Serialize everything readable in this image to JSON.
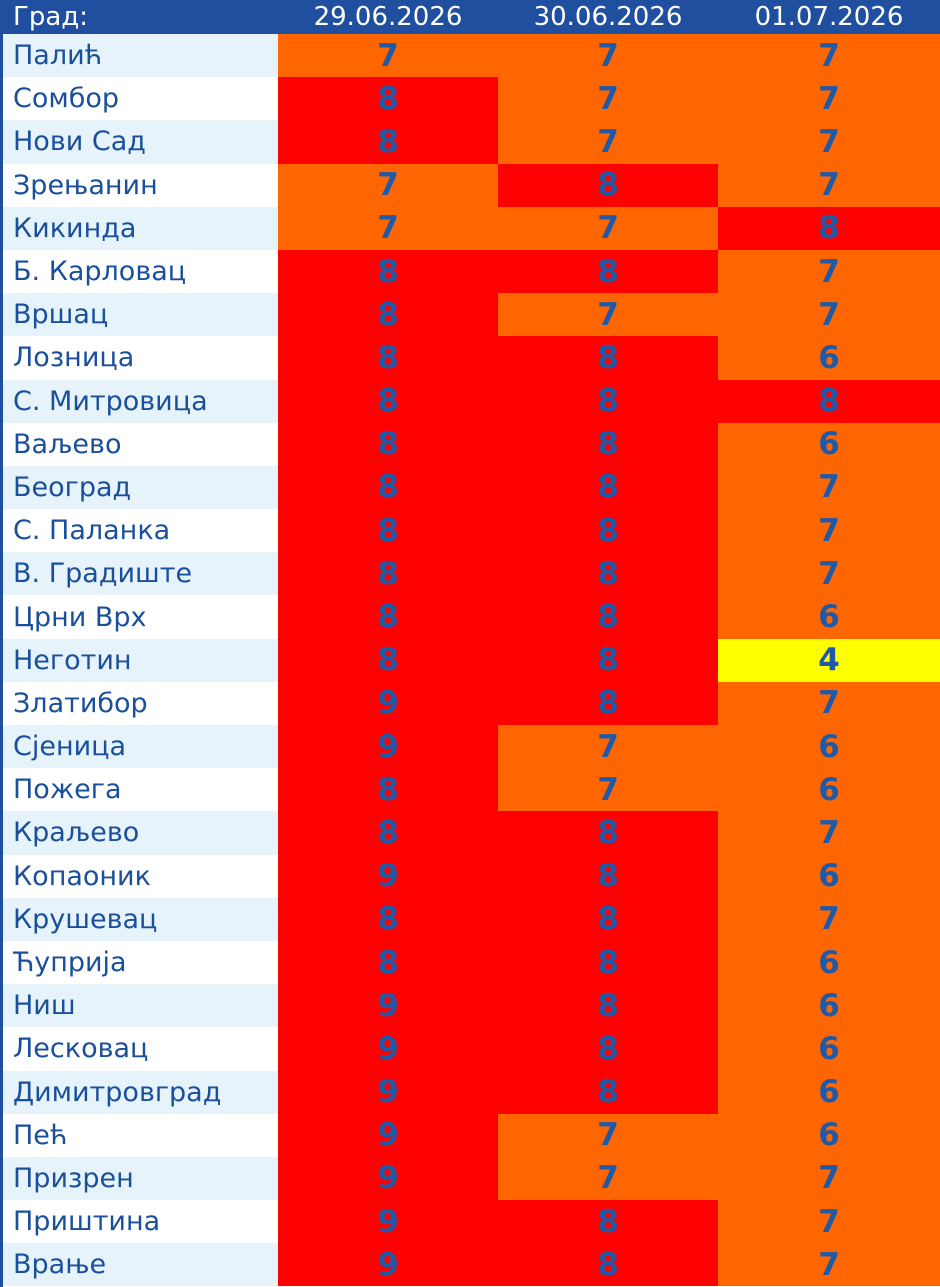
{
  "table": {
    "header": [
      "Град:",
      "29.06.2026",
      "30.06.2026",
      "01.07.2026"
    ],
    "cell_colors": {
      "4": "#ffff00",
      "6": "#ff6600",
      "7": "#ff6600",
      "8": "#ff0000",
      "9": "#ff0000"
    },
    "rows": [
      [
        "Палић",
        7,
        7,
        7
      ],
      [
        "Сомбор",
        8,
        7,
        7
      ],
      [
        "Нови Сад",
        8,
        7,
        7
      ],
      [
        "Зрењанин",
        7,
        8,
        7
      ],
      [
        "Кикинда",
        7,
        7,
        8
      ],
      [
        "Б. Карловац",
        8,
        8,
        7
      ],
      [
        "Вршац",
        8,
        7,
        7
      ],
      [
        "Лозница",
        8,
        8,
        6
      ],
      [
        "С. Митровица",
        8,
        8,
        8
      ],
      [
        "Ваљево",
        8,
        8,
        6
      ],
      [
        "Београд",
        8,
        8,
        7
      ],
      [
        "С. Паланка",
        8,
        8,
        7
      ],
      [
        "В. Градиште",
        8,
        8,
        7
      ],
      [
        "Црни Врх",
        8,
        8,
        6
      ],
      [
        "Неготин",
        8,
        8,
        4
      ],
      [
        "Златибор",
        9,
        8,
        7
      ],
      [
        "Сјеница",
        9,
        7,
        6
      ],
      [
        "Пожега",
        8,
        7,
        6
      ],
      [
        "Краљево",
        8,
        8,
        7
      ],
      [
        "Копаоник",
        9,
        8,
        6
      ],
      [
        "Крушевац",
        8,
        8,
        7
      ],
      [
        "Ћуприја",
        8,
        8,
        6
      ],
      [
        "Ниш",
        9,
        8,
        6
      ],
      [
        "Лесковац",
        9,
        8,
        6
      ],
      [
        "Димитровград",
        9,
        8,
        6
      ],
      [
        "Пећ",
        9,
        7,
        6
      ],
      [
        "Призрен",
        9,
        7,
        7
      ],
      [
        "Приштина",
        9,
        8,
        7
      ],
      [
        "Врање",
        9,
        8,
        7
      ]
    ]
  }
}
